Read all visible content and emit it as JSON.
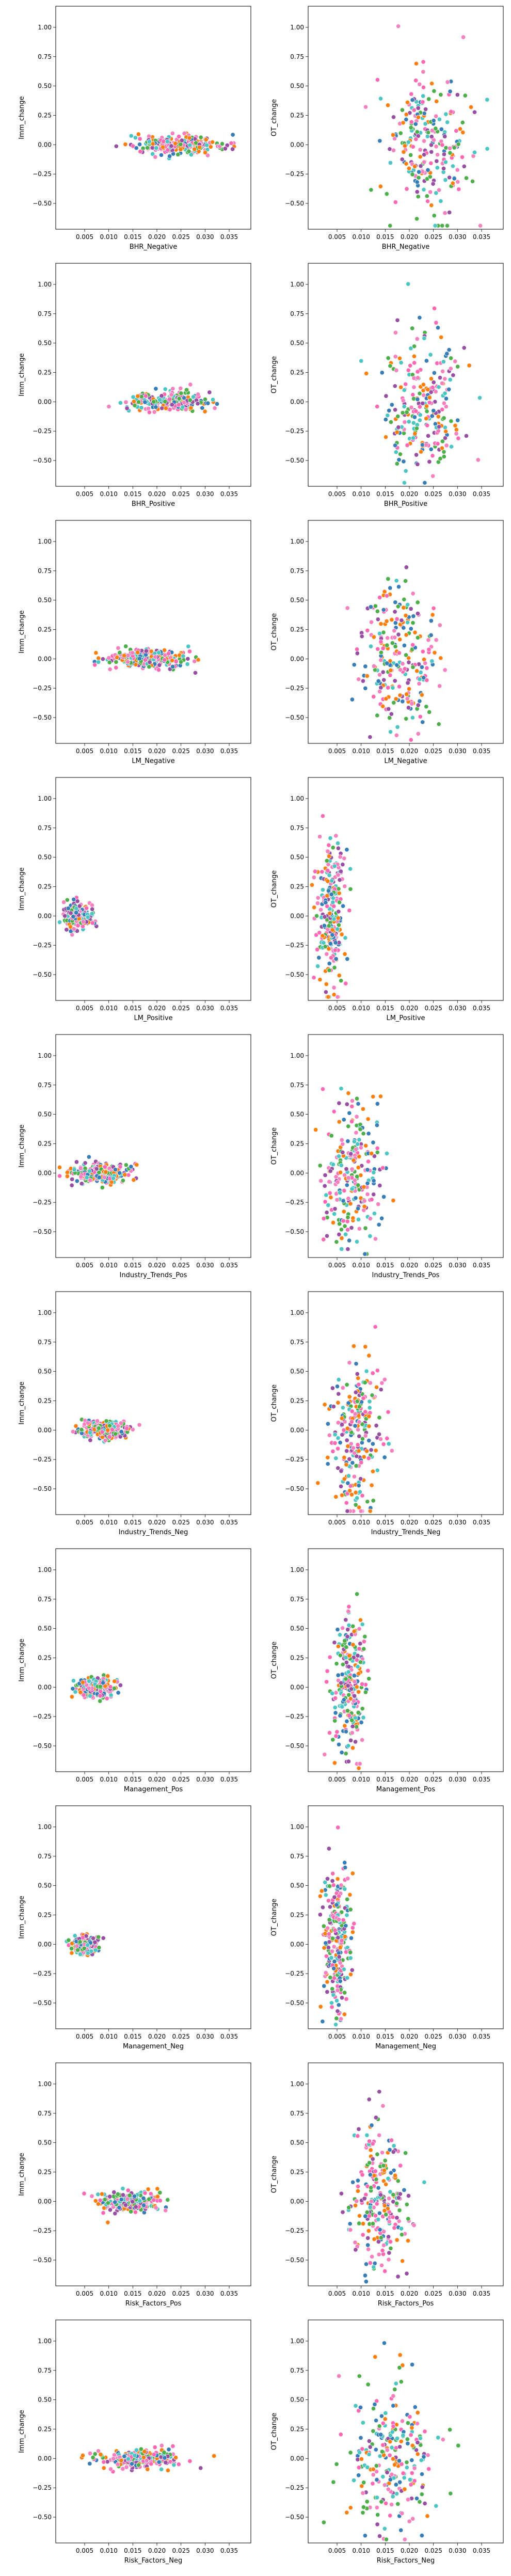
{
  "figure": {
    "columns": 2,
    "rows": 10,
    "ylim": [
      -0.72,
      1.18
    ],
    "xlim": [
      -0.001,
      0.0395
    ],
    "xticks": [
      0.005,
      0.01,
      0.015,
      0.02,
      0.025,
      0.03,
      0.035
    ],
    "xtick_labels": [
      "0.005",
      "0.010",
      "0.015",
      "0.020",
      "0.025",
      "0.030",
      "0.035"
    ],
    "yticks": [
      -0.5,
      -0.25,
      0.0,
      0.25,
      0.5,
      0.75,
      1.0
    ],
    "ytick_labels": [
      "−0.50",
      "−0.25",
      "0.00",
      "0.25",
      "0.50",
      "0.75",
      "1.00"
    ],
    "palette": [
      "#f781bf",
      "#4daf4a",
      "#377eb8",
      "#ff7f0e",
      "#984ea3",
      "#4bc6c2",
      "#ff69b4"
    ]
  },
  "chart_data": [
    {
      "type": "scatter",
      "xlabel": "BHR_Negative",
      "ylabel": "Imm_change",
      "x_center": 0.024,
      "x_spread": 0.0045,
      "y_center": 0.0,
      "y_spread": 0.04,
      "n": 240
    },
    {
      "type": "scatter",
      "xlabel": "BHR_Negative",
      "ylabel": "OT_change",
      "x_center": 0.024,
      "x_spread": 0.0045,
      "y_center": 0.0,
      "y_spread": 0.3,
      "n": 240
    },
    {
      "type": "scatter",
      "xlabel": "BHR_Positive",
      "ylabel": "Imm_change",
      "x_center": 0.023,
      "x_spread": 0.004,
      "y_center": 0.0,
      "y_spread": 0.04,
      "n": 240
    },
    {
      "type": "scatter",
      "xlabel": "BHR_Positive",
      "ylabel": "OT_change",
      "x_center": 0.023,
      "x_spread": 0.004,
      "y_center": 0.0,
      "y_spread": 0.3,
      "n": 240
    },
    {
      "type": "scatter",
      "xlabel": "LM_Negative",
      "ylabel": "Imm_change",
      "x_center": 0.018,
      "x_spread": 0.004,
      "y_center": 0.0,
      "y_spread": 0.04,
      "n": 240
    },
    {
      "type": "scatter",
      "xlabel": "LM_Negative",
      "ylabel": "OT_change",
      "x_center": 0.018,
      "x_spread": 0.004,
      "y_center": 0.0,
      "y_spread": 0.3,
      "n": 240
    },
    {
      "type": "scatter",
      "xlabel": "LM_Positive",
      "ylabel": "Imm_change",
      "x_center": 0.0035,
      "x_spread": 0.0014,
      "y_center": 0.0,
      "y_spread": 0.05,
      "n": 240
    },
    {
      "type": "scatter",
      "xlabel": "LM_Positive",
      "ylabel": "OT_change",
      "x_center": 0.0035,
      "x_spread": 0.0014,
      "y_center": 0.05,
      "y_spread": 0.32,
      "n": 240
    },
    {
      "type": "scatter",
      "xlabel": "Industry_Trends_Pos",
      "ylabel": "Imm_change",
      "x_center": 0.008,
      "x_spread": 0.003,
      "y_center": 0.0,
      "y_spread": 0.04,
      "n": 240
    },
    {
      "type": "scatter",
      "xlabel": "Industry_Trends_Pos",
      "ylabel": "OT_change",
      "x_center": 0.008,
      "x_spread": 0.003,
      "y_center": 0.0,
      "y_spread": 0.3,
      "n": 240
    },
    {
      "type": "scatter",
      "xlabel": "Industry_Trends_Neg",
      "ylabel": "Imm_change",
      "x_center": 0.009,
      "x_spread": 0.0025,
      "y_center": 0.0,
      "y_spread": 0.04,
      "n": 240
    },
    {
      "type": "scatter",
      "xlabel": "Industry_Trends_Neg",
      "ylabel": "OT_change",
      "x_center": 0.009,
      "x_spread": 0.0025,
      "y_center": 0.0,
      "y_spread": 0.3,
      "n": 240
    },
    {
      "type": "scatter",
      "xlabel": "Management_Pos",
      "ylabel": "Imm_change",
      "x_center": 0.0075,
      "x_spread": 0.0018,
      "y_center": 0.0,
      "y_spread": 0.04,
      "n": 240
    },
    {
      "type": "scatter",
      "xlabel": "Management_Pos",
      "ylabel": "OT_change",
      "x_center": 0.0075,
      "x_spread": 0.0018,
      "y_center": 0.0,
      "y_spread": 0.3,
      "n": 240
    },
    {
      "type": "scatter",
      "xlabel": "Management_Neg",
      "ylabel": "Imm_change",
      "x_center": 0.005,
      "x_spread": 0.0013,
      "y_center": 0.0,
      "y_spread": 0.04,
      "n": 240
    },
    {
      "type": "scatter",
      "xlabel": "Management_Neg",
      "ylabel": "OT_change",
      "x_center": 0.005,
      "x_spread": 0.0013,
      "y_center": 0.0,
      "y_spread": 0.3,
      "n": 240
    },
    {
      "type": "scatter",
      "xlabel": "Risk_Factors_Pos",
      "ylabel": "Imm_change",
      "x_center": 0.014,
      "x_spread": 0.003,
      "y_center": 0.0,
      "y_spread": 0.04,
      "n": 240
    },
    {
      "type": "scatter",
      "xlabel": "Risk_Factors_Pos",
      "ylabel": "OT_change",
      "x_center": 0.014,
      "x_spread": 0.003,
      "y_center": 0.0,
      "y_spread": 0.3,
      "n": 240
    },
    {
      "type": "scatter",
      "xlabel": "Risk_Factors_Neg",
      "ylabel": "Imm_change",
      "x_center": 0.0165,
      "x_spread": 0.0045,
      "y_center": 0.0,
      "y_spread": 0.04,
      "n": 240
    },
    {
      "type": "scatter",
      "xlabel": "Risk_Factors_Neg",
      "ylabel": "OT_change",
      "x_center": 0.0165,
      "x_spread": 0.0045,
      "y_center": 0.0,
      "y_spread": 0.3,
      "n": 240
    }
  ]
}
